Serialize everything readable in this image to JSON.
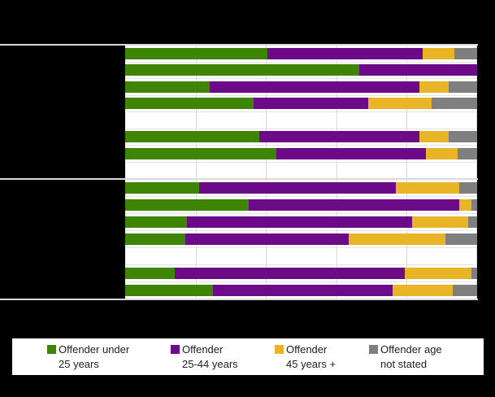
{
  "chart_data": {
    "type": "bar",
    "orientation": "horizontal",
    "stacked": true,
    "x_unit": "percent",
    "xlim": [
      0,
      100
    ],
    "x_gridlines": [
      20,
      40,
      60,
      80,
      100
    ],
    "grid": true,
    "legend_position": "bottom",
    "series": [
      {
        "name": "Offender under 25 years",
        "color": "#3e8505"
      },
      {
        "name": "Offender 25-44 years",
        "color": "#6c0a87"
      },
      {
        "name": "Offender 45 years +",
        "color": "#e9b527"
      },
      {
        "name": "Offender age not stated",
        "color": "#7f7f7f"
      }
    ],
    "groups": [
      {
        "rows": [
          {
            "values": [
              40.5,
              44,
              9,
              6.5
            ]
          },
          {
            "values": [
              66.5,
              33.5,
              0,
              0
            ]
          },
          {
            "values": [
              24,
              59.5,
              8.5,
              8
            ]
          },
          {
            "values": [
              36.5,
              32.5,
              18,
              13
            ]
          },
          {
            "values": null
          },
          {
            "values": [
              38,
              45.5,
              8.5,
              8
            ]
          },
          {
            "values": [
              43,
              42.5,
              9,
              5.5
            ]
          },
          {
            "values": null
          }
        ]
      },
      {
        "rows": [
          {
            "values": [
              21,
              56,
              18,
              5
            ]
          },
          {
            "values": [
              35,
              60,
              3.5,
              1.5
            ]
          },
          {
            "values": [
              17.5,
              64,
              16,
              2.5
            ]
          },
          {
            "values": [
              17,
              46.5,
              27.5,
              9
            ]
          },
          {
            "values": null
          },
          {
            "values": [
              14,
              65.5,
              19,
              1.5
            ]
          },
          {
            "values": [
              25,
              51,
              17,
              7
            ]
          }
        ]
      }
    ]
  },
  "legend": {
    "items": [
      {
        "line1": "Offender under",
        "line2": "25 years",
        "color": "#3e8505"
      },
      {
        "line1": "Offender",
        "line2": "25-44 years",
        "color": "#6c0a87"
      },
      {
        "line1": "Offender",
        "line2": "45 years +",
        "color": "#e9b527"
      },
      {
        "line1": "Offender age",
        "line2": "not stated",
        "color": "#7f7f7f"
      }
    ]
  },
  "colors": {
    "background": "#000000",
    "plot_background": "#ffffff",
    "gridline": "#d9d9d9",
    "row_line": "#e3e3e3",
    "separator_line": "#d9d9d9",
    "legend_text": "#212121"
  }
}
